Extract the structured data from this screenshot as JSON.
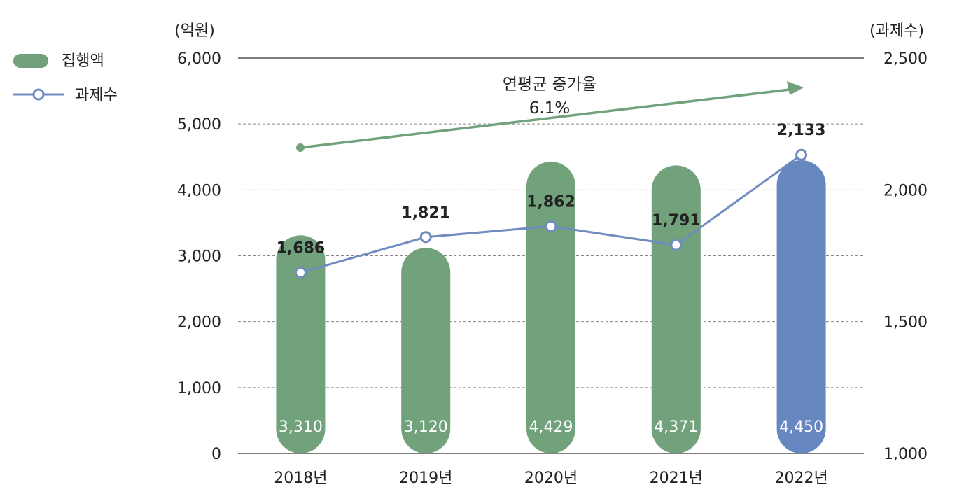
{
  "chart_data": {
    "type": "bar",
    "categories": [
      "2018년",
      "2019년",
      "2020년",
      "2021년",
      "2022년"
    ],
    "series": [
      {
        "name": "집행액",
        "type": "bar",
        "axis": "left",
        "values": [
          3310,
          3120,
          4429,
          4371,
          4450
        ],
        "labels": [
          "3,310",
          "3,120",
          "4,429",
          "4,371",
          "4,450"
        ],
        "colors": [
          "#72a27c",
          "#72a27c",
          "#72a27c",
          "#72a27c",
          "#6787c1"
        ]
      },
      {
        "name": "과제수",
        "type": "line",
        "axis": "right",
        "values": [
          1686,
          1821,
          1862,
          1791,
          2133
        ],
        "labels": [
          "1,686",
          "1,821",
          "1,862",
          "1,791",
          "2,133"
        ],
        "color": "#6f8bbf"
      }
    ],
    "y_left": {
      "unit": "(억원)",
      "ylim": [
        0,
        6000
      ],
      "ticks": [
        0,
        1000,
        2000,
        3000,
        4000,
        5000,
        6000
      ],
      "tick_labels": [
        "0",
        "1,000",
        "2,000",
        "3,000",
        "4,000",
        "5,000",
        "6,000"
      ]
    },
    "y_right": {
      "unit": "(과제수)",
      "ylim": [
        1000,
        2500
      ],
      "ticks": [
        1000,
        1500,
        2000,
        2500
      ],
      "tick_labels": [
        "1,000",
        "1,500",
        "2,000",
        "2,500"
      ]
    },
    "annotation": {
      "text": "연평균 증가율",
      "value": "6.1%",
      "color": "#72a27c"
    },
    "legend": {
      "placement": "top-left",
      "items": [
        {
          "label": "집행액",
          "marker": "pill",
          "color": "#72a27c"
        },
        {
          "label": "과제수",
          "marker": "line-circle",
          "color": "#6f8bbf"
        }
      ]
    },
    "grid": true
  }
}
